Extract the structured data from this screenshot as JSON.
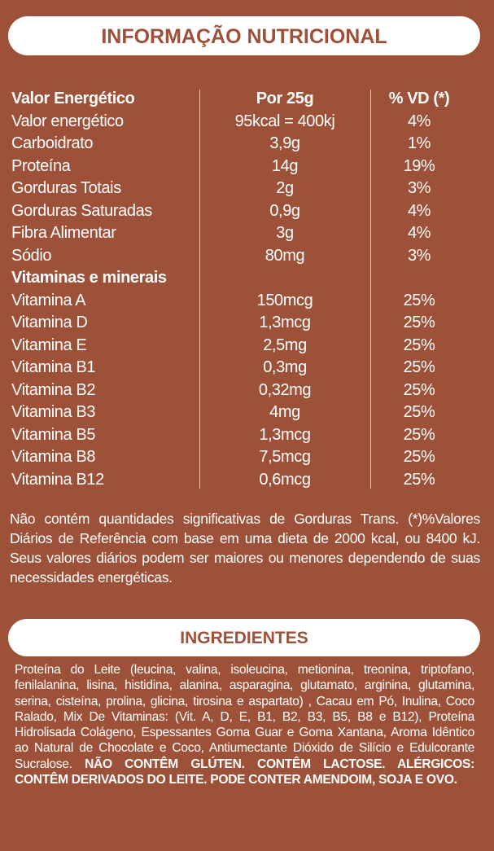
{
  "header": {
    "title": "INFORMAÇÃO NUTRICIONAL"
  },
  "table": {
    "columns": [
      "Valor Energético",
      "Por 25g",
      "% VD (*)"
    ],
    "rows": [
      [
        "Valor energético",
        "95kcal = 400kj",
        "4%"
      ],
      [
        "Carboidrato",
        "3,9g",
        "1%"
      ],
      [
        "Proteína",
        "14g",
        "19%"
      ],
      [
        "Gorduras Totais",
        "2g",
        "3%"
      ],
      [
        "Gorduras Saturadas",
        "0,9g",
        "4%"
      ],
      [
        "Fibra Alimentar",
        "3g",
        "4%"
      ],
      [
        "Sódio",
        "80mg",
        "3%"
      ],
      [
        "Vitaminas e minerais"
      ],
      [
        "Vitamina A",
        "150mcg",
        "25%"
      ],
      [
        "Vitamina D",
        "1,3mcg",
        "25%"
      ],
      [
        "Vitamina E",
        "2,5mg",
        "25%"
      ],
      [
        "Vitamina B1",
        "0,3mg",
        "25%"
      ],
      [
        "Vitamina B2",
        "0,32mg",
        "25%"
      ],
      [
        "Vitamina B3",
        "4mg",
        "25%"
      ],
      [
        "Vitamina B5",
        "1,3mcg",
        "25%"
      ],
      [
        "Vitamina B8",
        "7,5mcg",
        "25%"
      ],
      [
        "Vitamina B12",
        "0,6mcg",
        "25%"
      ]
    ]
  },
  "footnote": "Não contém quantidades significativas de Gorduras Trans. (*)%Valores Diários de Referência com base em uma dieta de 2000 kcal, ou 8400 kJ. Seus valores diários podem ser maiores ou menores dependendo de suas necessidades energéticas.",
  "ingredients": {
    "title": "INGREDIENTES",
    "text": "Proteína do Leite (leucina, valina, isoleucina, metionina, treonina, triptofano, fenilalanina, lisina, histidina, alanina, asparagina, glutamato, arginina, glutamina, serina, cisteína, prolina, glicina, tirosina e aspartato) , Cacau em Pó, Inulina, Coco Ralado, Mix De Vitaminas: (Vit. A, D, E, B1, B2, B3, B5, B8 e B12), Proteína Hidrolisada Colágeno, Espessantes Goma Guar e Goma Xantana, Aroma Idêntico ao Natural de Chocolate e Coco, Antiumectante Dióxido de Silício e Edulcorante Sucralose.",
    "warning": "NÃO CONTÊM GLÚTEN. CONTÊM LACTOSE. ALÉRGICOS: CONTÊM DERIVADOS DO LEITE. PODE CONTER AMENDOIM, SOJA E OVO."
  }
}
